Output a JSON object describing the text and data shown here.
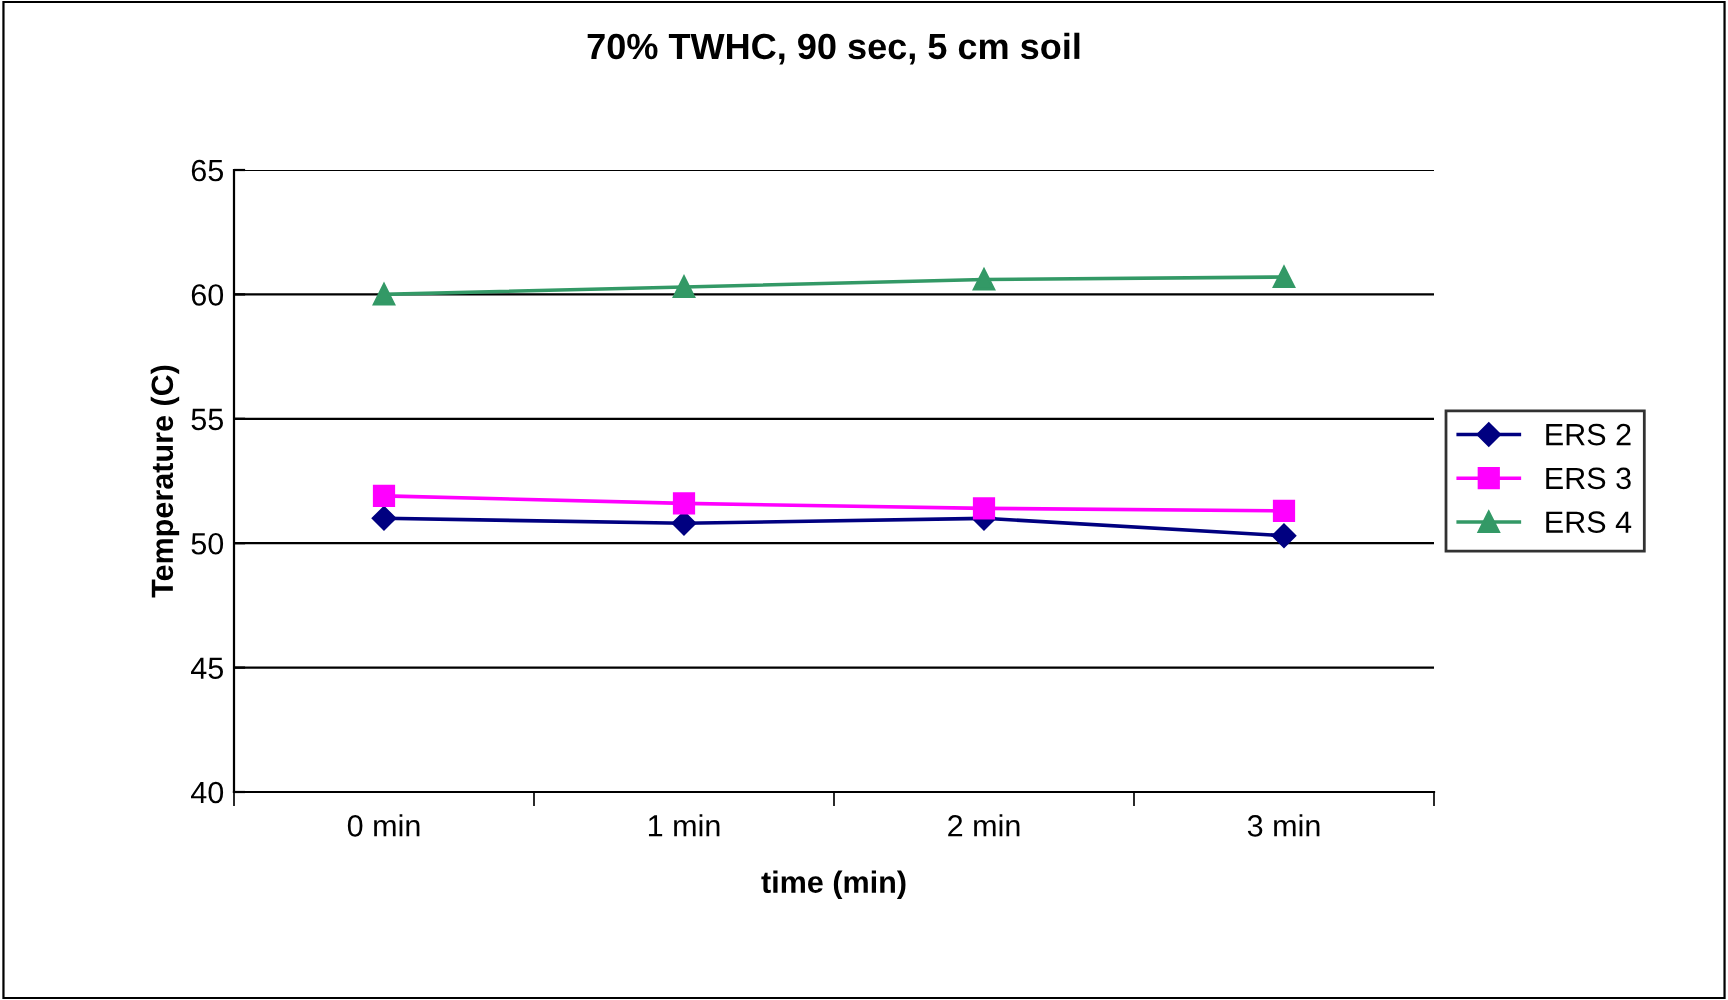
{
  "chart_data": {
    "type": "line",
    "title": "70% TWHC, 90 sec, 5 cm soil",
    "xlabel": "time (min)",
    "ylabel": "Temperature (C)",
    "categories": [
      "0 min",
      "1 min",
      "2 min",
      "3 min"
    ],
    "series": [
      {
        "name": "ERS 2",
        "color": "#000080",
        "marker": "diamond",
        "values": [
          51.0,
          50.8,
          51.0,
          50.3
        ]
      },
      {
        "name": "ERS 3",
        "color": "#ff00ff",
        "marker": "square",
        "values": [
          51.9,
          51.6,
          51.4,
          51.3
        ]
      },
      {
        "name": "ERS 4",
        "color": "#339966",
        "marker": "triangle",
        "values": [
          60.0,
          60.3,
          60.6,
          60.7
        ]
      }
    ],
    "ylim": [
      40,
      65
    ],
    "yticks": [
      40,
      45,
      50,
      55,
      60,
      65
    ],
    "grid": "y",
    "legend": "right",
    "line_style": "solid"
  }
}
